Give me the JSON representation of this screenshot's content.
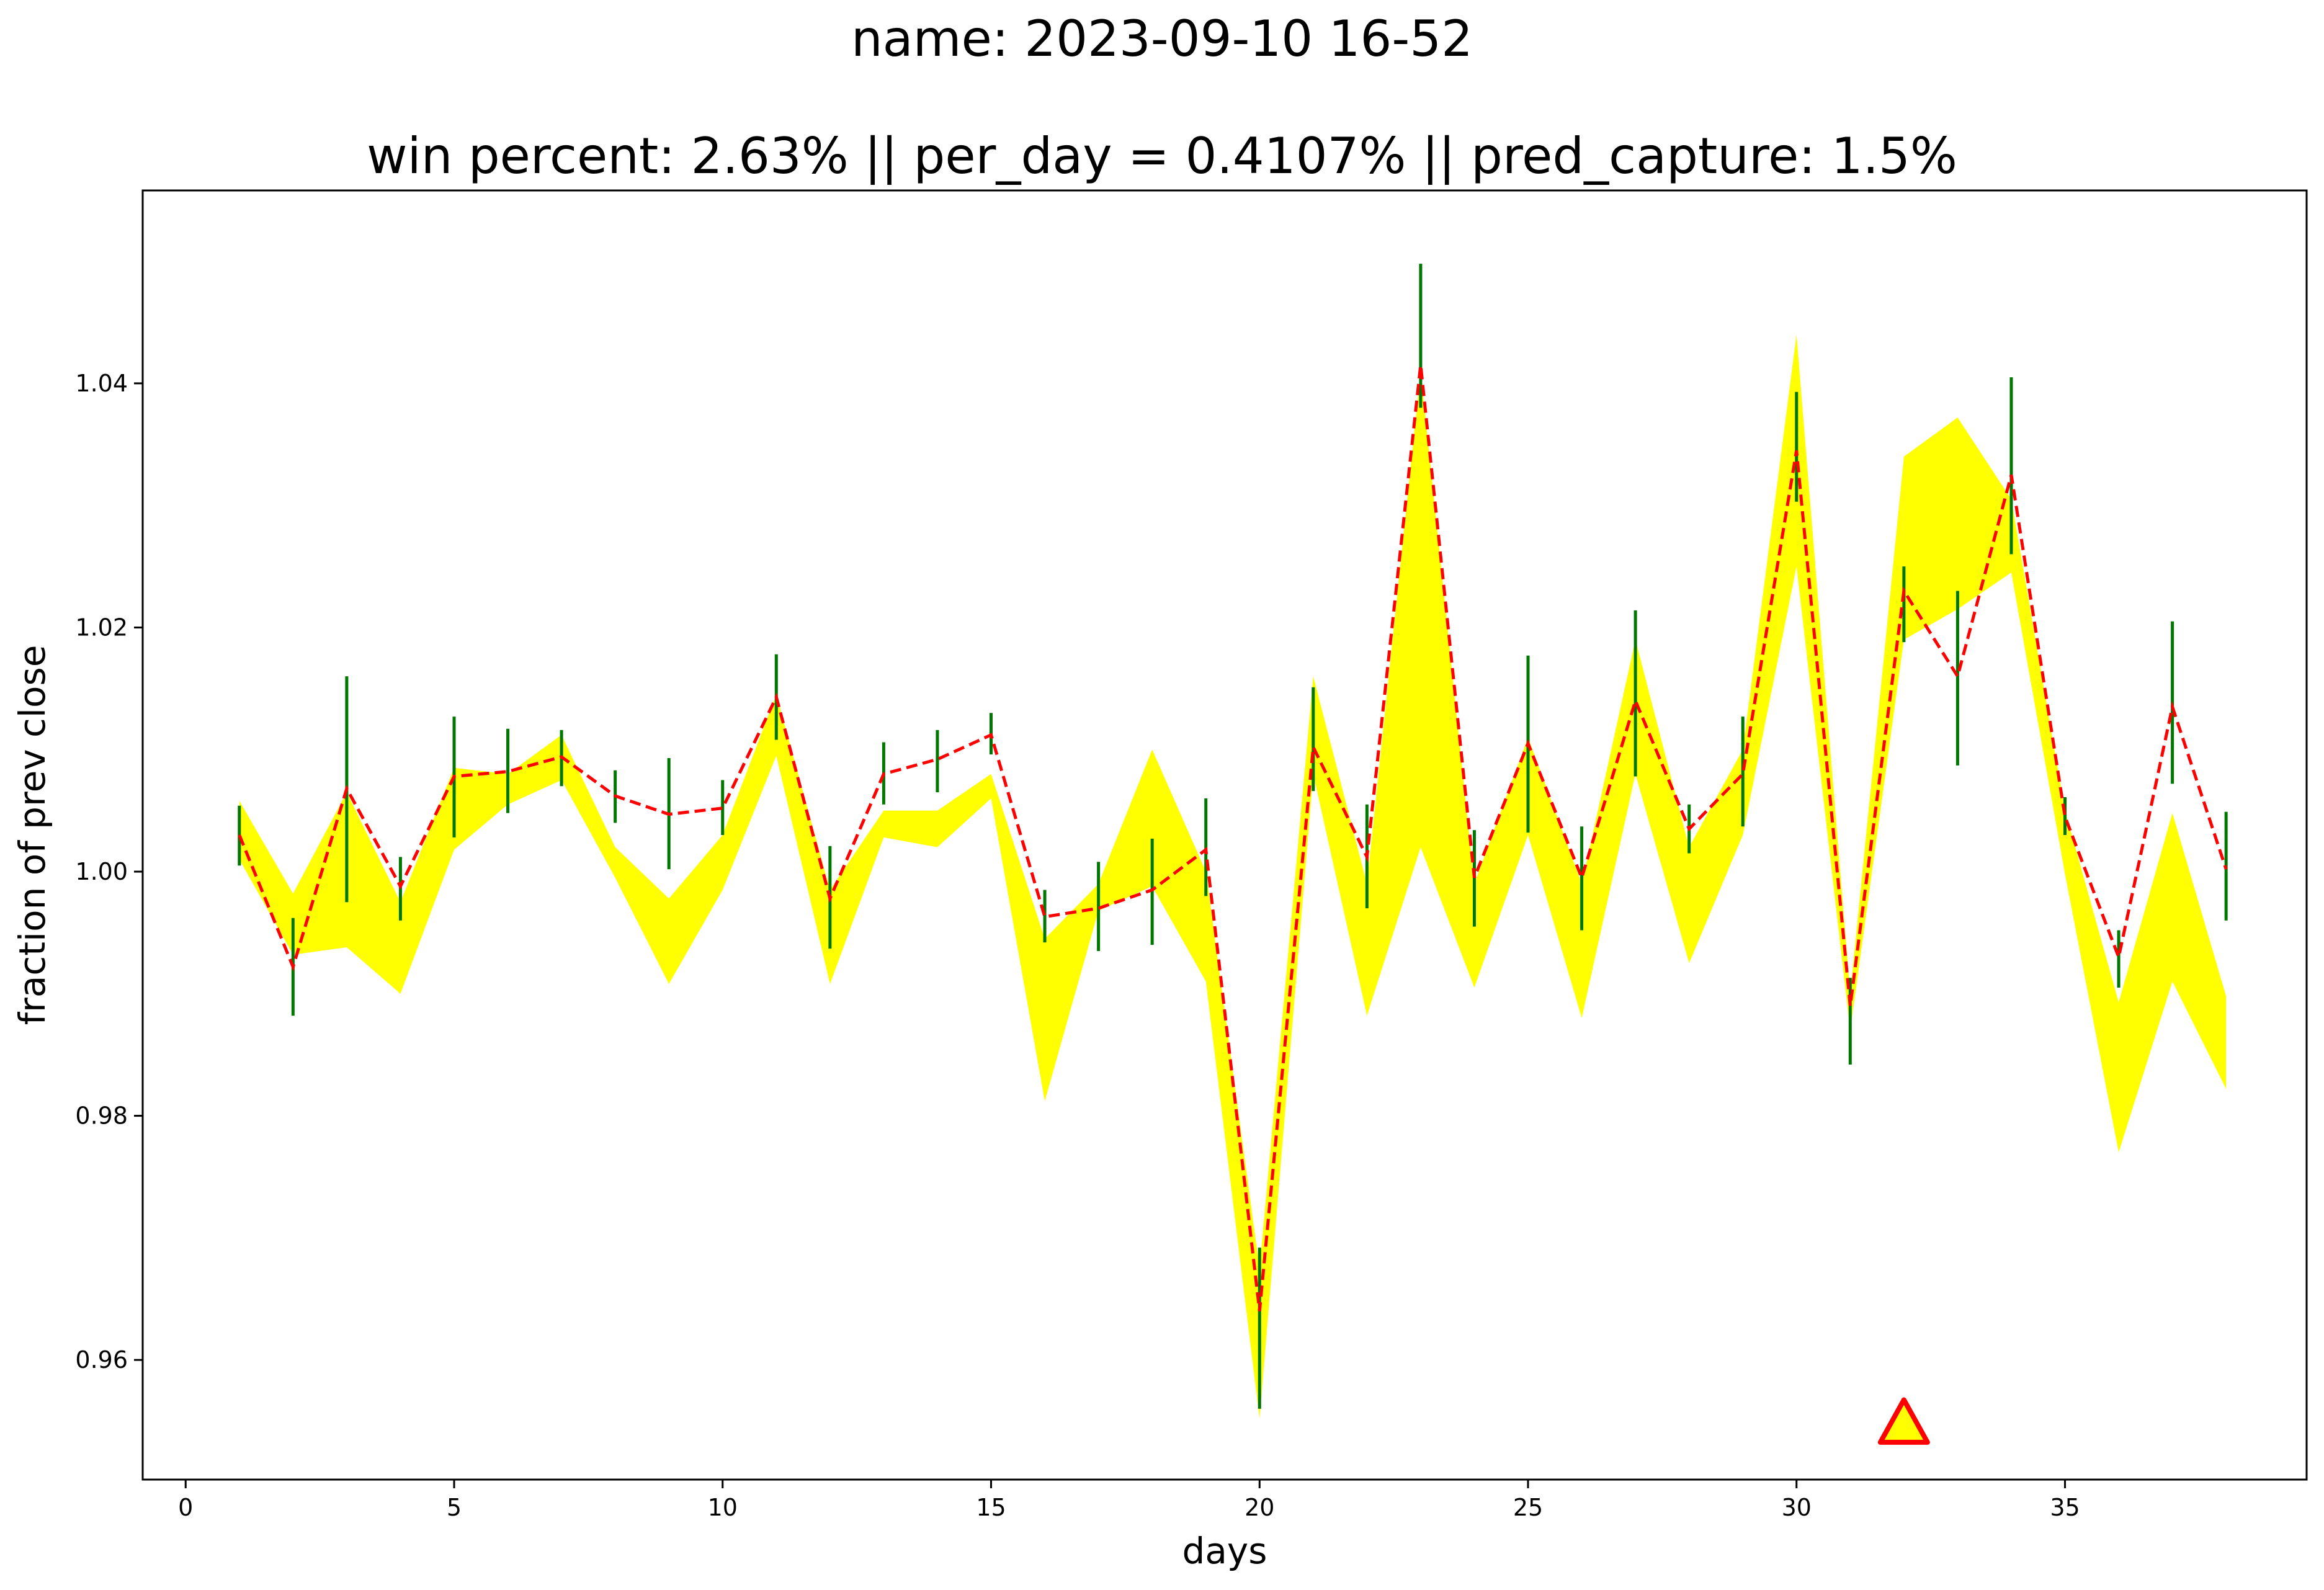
{
  "chart_data": {
    "type": "line",
    "title": "name: 2023-09-10 16-52",
    "subtitle": "win percent: 2.63%  || per_day = 0.4107% || pred_capture: 1.5%",
    "xlabel": "days",
    "ylabel": "fraction of prev close",
    "xlim": [
      -0.8,
      39.5
    ],
    "ylim": [
      0.9502,
      1.0558
    ],
    "xticks": [
      0,
      5,
      10,
      15,
      20,
      25,
      30,
      35
    ],
    "yticks": [
      0.96,
      0.98,
      1.0,
      1.02,
      1.04
    ],
    "ytick_labels": [
      "0.96",
      "0.98",
      "1.00",
      "1.02",
      "1.04"
    ],
    "grid": false,
    "band": {
      "color": "#ffff00",
      "x": [
        1,
        2,
        3,
        4,
        5,
        6,
        7,
        8,
        9,
        10,
        11,
        12,
        13,
        14,
        15,
        16,
        17,
        18,
        19,
        20,
        21,
        22,
        23,
        24,
        25,
        26,
        27,
        28,
        29,
        30,
        31,
        32,
        33,
        34,
        35,
        36,
        37,
        38
      ],
      "upper": [
        1.0058,
        0.9982,
        1.0065,
        0.9975,
        1.0085,
        1.008,
        1.0112,
        1.002,
        0.9978,
        1.003,
        1.0145,
        0.9985,
        1.005,
        1.005,
        1.008,
        0.9945,
        0.999,
        1.01,
        1.0,
        0.9675,
        1.016,
        0.999,
        1.041,
        0.999,
        1.011,
        0.999,
        1.019,
        1.002,
        1.01,
        1.044,
        0.99,
        1.034,
        1.0372,
        1.0305,
        1.005,
        0.9893,
        1.0048,
        0.9898
      ],
      "lower": [
        1.001,
        0.9932,
        0.9938,
        0.99,
        1.0018,
        1.0055,
        1.0075,
        0.9995,
        0.9908,
        0.9985,
        1.0095,
        0.9908,
        1.0028,
        1.002,
        1.006,
        0.9812,
        0.9968,
        0.9988,
        0.991,
        0.9552,
        1.008,
        0.9882,
        1.002,
        0.9905,
        1.003,
        0.988,
        1.008,
        0.9925,
        1.003,
        1.025,
        0.987,
        1.019,
        1.0215,
        1.0245,
        0.9998,
        0.977,
        0.991,
        0.9822
      ]
    },
    "series": [
      {
        "type": "line",
        "style": "dashed",
        "color": "#ff0000",
        "x": [
          1,
          2,
          3,
          4,
          5,
          6,
          7,
          8,
          9,
          10,
          11,
          12,
          13,
          14,
          15,
          16,
          17,
          18,
          19,
          20,
          21,
          22,
          23,
          24,
          25,
          26,
          27,
          28,
          29,
          30,
          31,
          32,
          33,
          34,
          35,
          36,
          37,
          38
        ],
        "values": [
          1.003,
          0.9922,
          1.0068,
          0.9988,
          1.0078,
          1.0082,
          1.0094,
          1.0062,
          1.0047,
          1.0052,
          1.0143,
          0.9978,
          1.008,
          1.0092,
          1.0112,
          0.9963,
          0.997,
          0.9985,
          1.0018,
          0.964,
          1.0102,
          1.0012,
          1.0415,
          0.9995,
          1.0105,
          0.9995,
          1.014,
          1.0035,
          1.008,
          1.0345,
          0.989,
          1.023,
          1.016,
          1.0325,
          1.0045,
          0.993,
          1.0135,
          1.0002
        ]
      },
      {
        "type": "errorbar",
        "color": "#007700",
        "x": [
          1,
          2,
          3,
          4,
          5,
          6,
          7,
          8,
          9,
          10,
          11,
          12,
          13,
          14,
          15,
          16,
          17,
          18,
          19,
          20,
          21,
          22,
          23,
          24,
          25,
          26,
          27,
          28,
          29,
          30,
          31,
          32,
          33,
          34,
          35,
          36,
          37,
          38
        ],
        "low": [
          1.0005,
          0.9882,
          0.9975,
          0.996,
          1.0028,
          1.0048,
          1.007,
          1.004,
          1.0002,
          1.003,
          1.0108,
          0.9937,
          1.0055,
          1.0065,
          1.0096,
          0.9942,
          0.9935,
          0.994,
          0.998,
          0.956,
          1.0066,
          0.997,
          1.038,
          0.9955,
          1.0032,
          0.9952,
          1.0078,
          1.0015,
          1.0037,
          1.0303,
          0.9842,
          1.0188,
          1.0087,
          1.026,
          1.003,
          0.9905,
          1.0072,
          0.996
        ],
        "high": [
          1.0054,
          0.9962,
          1.016,
          1.0012,
          1.0127,
          1.0117,
          1.0116,
          1.0083,
          1.0093,
          1.0075,
          1.0178,
          1.0021,
          1.0106,
          1.0116,
          1.013,
          0.9985,
          1.0008,
          1.0027,
          1.006,
          0.9692,
          1.0151,
          1.0055,
          1.0498,
          1.0034,
          1.0177,
          1.0037,
          1.0214,
          1.0055,
          1.0127,
          1.0393,
          0.9913,
          1.025,
          1.023,
          1.0405,
          1.0061,
          0.9952,
          1.0205,
          1.0049
        ]
      }
    ],
    "marker": {
      "shape": "triangle",
      "x": 32,
      "y": 0.9548,
      "fill": "#ffff00",
      "edge": "#ff0000"
    }
  }
}
